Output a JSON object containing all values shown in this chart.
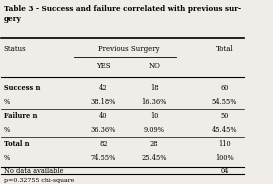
{
  "title": "Table 3 - Success and failure correlated with previous sur-\ngery",
  "col_header_1": "Previous Surgery",
  "col_header_2": "Total",
  "sub_headers": [
    "YES",
    "NO"
  ],
  "status_col": "Status",
  "rows": [
    [
      "Success n",
      "42",
      "18",
      "60"
    ],
    [
      "%",
      "38.18%",
      "16.36%",
      "54.55%"
    ],
    [
      "Failure n",
      "40",
      "10",
      "50"
    ],
    [
      "%",
      "36.36%",
      "9.09%",
      "45.45%"
    ],
    [
      "Total n",
      "82",
      "28",
      "110"
    ],
    [
      "%",
      "74.55%",
      "25.45%",
      "100%"
    ]
  ],
  "extra_row": [
    "No data available",
    "",
    "",
    "04"
  ],
  "footer": "p=0.32755 chi-square",
  "bg_color": "#f0ede8"
}
